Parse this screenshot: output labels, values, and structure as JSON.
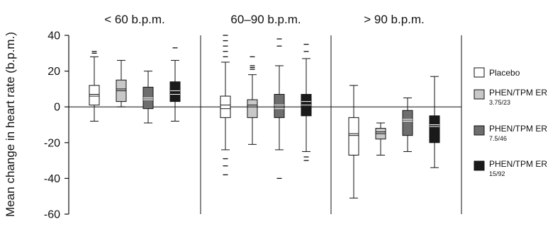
{
  "chart_data": {
    "type": "boxplot",
    "ylabel": "Mean change in heart rate (b.p.m.)",
    "ylim": [
      -60,
      40
    ],
    "yticks": [
      40,
      20,
      0,
      -20,
      -40,
      -60
    ],
    "grid": false,
    "legend_position": "right",
    "groups": [
      "< 60 b.p.m.",
      "60–90 b.p.m.",
      "> 90 b.p.m."
    ],
    "series": [
      {
        "name": "Placebo",
        "sub": "",
        "color": "#ffffff"
      },
      {
        "name": "PHEN/TPM ER",
        "sub": "3.75/23",
        "color": "#c8c8c8"
      },
      {
        "name": "PHEN/TPM ER",
        "sub": "7.5/46",
        "color": "#6e6e6e"
      },
      {
        "name": "PHEN/TPM ER",
        "sub": "15/92",
        "color": "#1a1a1a"
      }
    ],
    "boxes": [
      {
        "group": 0,
        "series": 0,
        "whisker_low": -8,
        "q1": 1,
        "median": 6,
        "mean": 7,
        "q3": 12,
        "whisker_high": 28,
        "outliers": [
          30,
          31
        ]
      },
      {
        "group": 0,
        "series": 1,
        "whisker_low": 0,
        "q1": 3,
        "median": 9,
        "mean": 10,
        "q3": 15,
        "whisker_high": 26,
        "outliers": []
      },
      {
        "group": 0,
        "series": 2,
        "whisker_low": -9,
        "q1": -1,
        "median": 4,
        "mean": 5,
        "q3": 11,
        "whisker_high": 20,
        "outliers": []
      },
      {
        "group": 0,
        "series": 3,
        "whisker_low": -8,
        "q1": 3,
        "median": 7,
        "mean": 9,
        "q3": 14,
        "whisker_high": 26,
        "outliers": [
          33
        ]
      },
      {
        "group": 1,
        "series": 0,
        "whisker_low": -24,
        "q1": -6,
        "median": -1,
        "mean": 1,
        "q3": 6,
        "whisker_high": 25,
        "outliers": [
          -29,
          -33,
          -38,
          28,
          31,
          34,
          37,
          40
        ]
      },
      {
        "group": 1,
        "series": 1,
        "whisker_low": -21,
        "q1": -6,
        "median": 0,
        "mean": 1,
        "q3": 4,
        "whisker_high": 18,
        "outliers": [
          21,
          22,
          23,
          28
        ]
      },
      {
        "group": 1,
        "series": 2,
        "whisker_low": -24,
        "q1": -6,
        "median": -1,
        "mean": 1,
        "q3": 7,
        "whisker_high": 23,
        "outliers": [
          -40,
          34,
          38
        ]
      },
      {
        "group": 1,
        "series": 3,
        "whisker_low": -25,
        "q1": -5,
        "median": 1,
        "mean": 3,
        "q3": 7,
        "whisker_high": 27,
        "outliers": [
          -28,
          -30,
          31,
          35
        ]
      },
      {
        "group": 2,
        "series": 0,
        "whisker_low": -51,
        "q1": -27,
        "median": -16,
        "mean": -15,
        "q3": -6,
        "whisker_high": 12,
        "outliers": []
      },
      {
        "group": 2,
        "series": 1,
        "whisker_low": -27,
        "q1": -18,
        "median": -15,
        "mean": -14,
        "q3": -12,
        "whisker_high": -9,
        "outliers": []
      },
      {
        "group": 2,
        "series": 2,
        "whisker_low": -25,
        "q1": -16,
        "median": -8,
        "mean": -7,
        "q3": -2,
        "whisker_high": 5,
        "outliers": []
      },
      {
        "group": 2,
        "series": 3,
        "whisker_low": -34,
        "q1": -20,
        "median": -11,
        "mean": -10,
        "q3": -5,
        "whisker_high": 17,
        "outliers": []
      }
    ]
  }
}
